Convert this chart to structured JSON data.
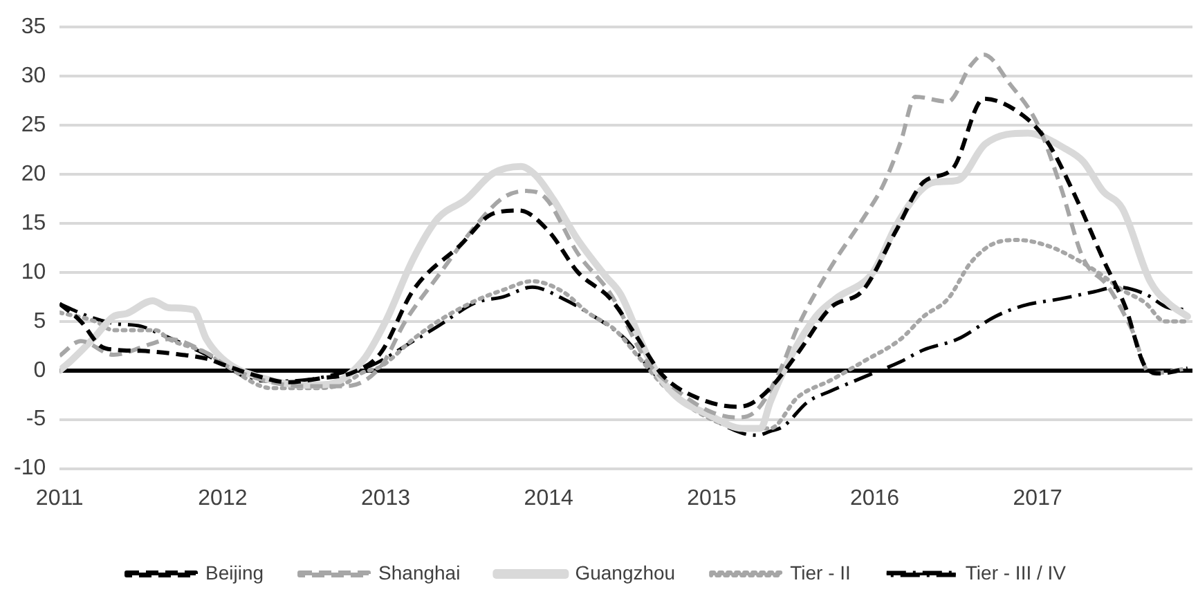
{
  "chart_data": {
    "type": "line",
    "xlim": [
      2011,
      2017.95
    ],
    "xticks": [
      2011,
      2012,
      2013,
      2014,
      2015,
      2016,
      2017
    ],
    "ylim": [
      -10,
      35
    ],
    "yticks": [
      -10,
      -5,
      0,
      5,
      10,
      15,
      20,
      25,
      30,
      35
    ],
    "grid": "y",
    "legend": "bottom",
    "marker": "none",
    "series": [
      {
        "name": "Beijing",
        "color": "#000000",
        "line_style": "dashed",
        "x": [
          2011,
          2011.13,
          2011.25,
          2011.35,
          2011.5,
          2011.7,
          2011.9,
          2012.02,
          2012.2,
          2012.4,
          2012.6,
          2012.8,
          2012.97,
          2013.17,
          2013.46,
          2013.66,
          2013.82,
          2014.0,
          2014.18,
          2014.38,
          2014.53,
          2014.7,
          2014.9,
          2015.16,
          2015.24,
          2015.36,
          2015.53,
          2015.73,
          2015.93,
          2016.13,
          2016.3,
          2016.48,
          2016.67,
          2016.91,
          2017.06,
          2017.23,
          2017.4,
          2017.54,
          2017.66,
          2017.75,
          2017.92
        ],
        "values": [
          6.8,
          5,
          2.5,
          2.1,
          2,
          1.7,
          1.2,
          0.5,
          -0.5,
          -1.2,
          -0.8,
          -0.2,
          1.8,
          8.2,
          12.8,
          16,
          16.3,
          14.2,
          10,
          7.3,
          3.7,
          -0.5,
          -2.7,
          -3.7,
          -3.4,
          -1.8,
          1.8,
          6.4,
          8.2,
          14.2,
          19.2,
          20.6,
          27.7,
          26,
          23.3,
          17.8,
          11.4,
          6.4,
          0.4,
          -0.3,
          0.2
        ]
      },
      {
        "name": "Shanghai",
        "color": "#a6a6a6",
        "line_style": "dashed",
        "x": [
          2011,
          2011.13,
          2011.33,
          2011.56,
          2011.67,
          2011.9,
          2012.02,
          2012.25,
          2012.5,
          2012.75,
          2012.97,
          2013.12,
          2013.32,
          2013.55,
          2013.72,
          2013.86,
          2013.98,
          2014.18,
          2014.38,
          2014.6,
          2014.75,
          2014.98,
          2015.16,
          2015.28,
          2015.42,
          2015.53,
          2015.73,
          2015.93,
          2016.05,
          2016.16,
          2016.25,
          2016.45,
          2016.59,
          2016.67,
          2016.83,
          2017.0,
          2017.14,
          2017.28,
          2017.43,
          2017.58,
          2017.69,
          2017.92
        ],
        "values": [
          1.5,
          3,
          1.6,
          2.7,
          3.2,
          1.8,
          0.5,
          -1,
          -1.6,
          -1.6,
          0.4,
          5,
          9.6,
          14.7,
          17.6,
          18.3,
          17.6,
          11.9,
          7.8,
          1,
          -1.5,
          -4.1,
          -4.8,
          -4,
          0,
          4.5,
          10.5,
          15.5,
          18.8,
          23.3,
          27.9,
          27.4,
          31.1,
          32.2,
          29.2,
          25.1,
          18.8,
          11.4,
          8.6,
          4.1,
          -0.3,
          0.2
        ]
      },
      {
        "name": "Guangzhou",
        "color": "#d9d9d9",
        "line_style": "solid",
        "x": [
          2011,
          2011.07,
          2011.22,
          2011.33,
          2011.41,
          2011.57,
          2011.67,
          2011.82,
          2011.9,
          2012.02,
          2012.25,
          2012.5,
          2012.65,
          2012.86,
          2013.0,
          2013.17,
          2013.32,
          2013.49,
          2013.66,
          2013.83,
          2013.92,
          2014.03,
          2014.18,
          2014.35,
          2014.44,
          2014.61,
          2014.76,
          2014.98,
          2015.19,
          2015.3,
          2015.36,
          2015.47,
          2015.64,
          2015.76,
          2015.99,
          2016.13,
          2016.28,
          2016.37,
          2016.51,
          2016.68,
          2016.94,
          2017.17,
          2017.28,
          2017.4,
          2017.52,
          2017.69,
          2017.8,
          2017.92
        ],
        "values": [
          0,
          1,
          3.5,
          5.5,
          5.8,
          7.1,
          6.4,
          6.2,
          3.2,
          0.9,
          -0.8,
          -1.5,
          -1.4,
          1,
          5,
          11.4,
          15.5,
          17.4,
          20.1,
          20.8,
          19.9,
          17.4,
          13.3,
          9.6,
          7.8,
          1.4,
          -2.3,
          -4.5,
          -5.9,
          -5.9,
          -3.2,
          0.9,
          5.5,
          7.3,
          10,
          14.7,
          18.3,
          19.2,
          19.4,
          23.1,
          24.2,
          22.6,
          21.3,
          18.3,
          16.5,
          9.1,
          6.9,
          5.5
        ]
      },
      {
        "name": "Tier - II",
        "color": "#a6a6a6",
        "line_style": "dotted",
        "x": [
          2011,
          2011.22,
          2011.33,
          2011.59,
          2011.67,
          2011.9,
          2012.02,
          2012.3,
          2012.54,
          2012.74,
          2012.86,
          2012.97,
          2013.17,
          2013.32,
          2013.55,
          2013.72,
          2013.9,
          2014.09,
          2014.24,
          2014.41,
          2014.55,
          2014.72,
          2014.9,
          2015.13,
          2015.36,
          2015.53,
          2015.73,
          2015.93,
          2016.16,
          2016.3,
          2016.45,
          2016.59,
          2016.74,
          2016.88,
          2017.08,
          2017.23,
          2017.37,
          2017.52,
          2017.66,
          2017.78,
          2017.92
        ],
        "values": [
          5.9,
          5,
          4.1,
          4.1,
          3.2,
          1.8,
          0.5,
          -1.8,
          -1.8,
          -1.4,
          -0.2,
          0.4,
          3.2,
          5,
          7.1,
          8.2,
          9.1,
          8,
          5.9,
          4.1,
          1.4,
          -1.8,
          -4.1,
          -5.7,
          -5.9,
          -2.7,
          -1,
          0.9,
          3.2,
          5.5,
          7.3,
          11,
          13,
          13.3,
          12.6,
          11.4,
          10,
          8.2,
          6.9,
          5,
          5
        ]
      },
      {
        "name": "Tier - III / IV",
        "color": "#000000",
        "line_style": "dashdot",
        "x": [
          2011,
          2011.18,
          2011.33,
          2011.5,
          2011.62,
          2011.9,
          2012.02,
          2012.2,
          2012.34,
          2012.54,
          2012.74,
          2012.91,
          2013.17,
          2013.32,
          2013.55,
          2013.72,
          2013.9,
          2014.09,
          2014.24,
          2014.47,
          2014.61,
          2014.76,
          2014.96,
          2015.19,
          2015.28,
          2015.36,
          2015.44,
          2015.59,
          2015.73,
          2015.93,
          2016.16,
          2016.3,
          2016.51,
          2016.74,
          2016.91,
          2017.14,
          2017.34,
          2017.49,
          2017.66,
          2017.8,
          2017.92
        ],
        "values": [
          6.8,
          5.5,
          4.8,
          4.5,
          3.7,
          1.6,
          0.4,
          -1,
          -1.1,
          -0.9,
          -0.2,
          0.5,
          3,
          4.5,
          6.9,
          7.5,
          8.5,
          7.3,
          5.9,
          3.2,
          0.4,
          -2.3,
          -4.5,
          -6.4,
          -6.6,
          -6.2,
          -5.7,
          -3.2,
          -2.1,
          -0.7,
          0.9,
          2.1,
          3.2,
          5.5,
          6.6,
          7.3,
          8,
          8.5,
          7.8,
          6.4,
          6.2
        ]
      }
    ]
  }
}
